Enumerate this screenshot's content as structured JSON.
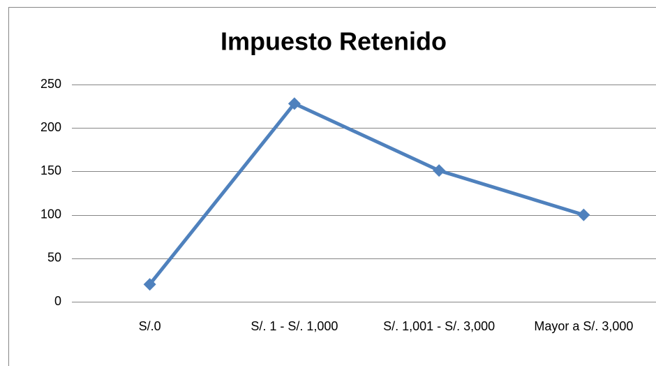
{
  "chart_data": {
    "type": "line",
    "title": "Impuesto Retenido",
    "categories": [
      "S/.0",
      "S/. 1 - S/. 1,000",
      "S/. 1,001 - S/. 3,000",
      "Mayor a S/. 3,000"
    ],
    "values": [
      20,
      228,
      151,
      100
    ],
    "color": "#4f81bd",
    "ylim": [
      0,
      250
    ],
    "yticks": [
      0,
      50,
      100,
      150,
      200,
      250
    ],
    "grid": true
  }
}
